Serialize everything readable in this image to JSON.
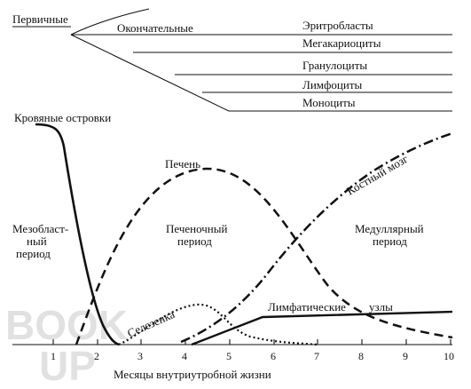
{
  "top_tree": {
    "primary": "Первичные",
    "definitive": "Окончательные",
    "cells": [
      "Эритробласты",
      "Мегакариоциты",
      "Гранулоциты",
      "Лимфоциты",
      "Моноциты"
    ]
  },
  "curves": {
    "blood_islands": "Кровяные островки",
    "liver": "Печень",
    "bone_marrow": "Костный мозг",
    "spleen": "Селезенка",
    "lymph_nodes_1": "Лимфатические",
    "lymph_nodes_2": "узлы"
  },
  "periods": {
    "mesoblastic_1": "Мезобласт-",
    "mesoblastic_2": "ный",
    "mesoblastic_3": "период",
    "hepatic_1": "Печеночный",
    "hepatic_2": "период",
    "medullary_1": "Медуллярный",
    "medullary_2": "период"
  },
  "axis": {
    "xlabel": "Месяцы внутриутробной жизни",
    "ticks": [
      "1",
      "2",
      "3",
      "4",
      "5",
      "6",
      "7",
      "8",
      "9",
      "10"
    ]
  },
  "watermark": {
    "line1": "BOOK",
    "line2": "UP"
  }
}
